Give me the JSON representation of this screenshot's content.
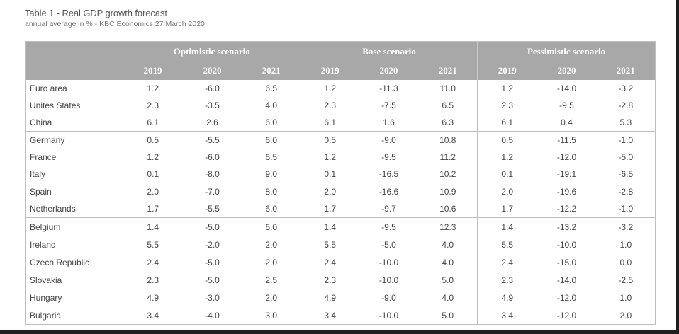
{
  "title": "Table 1 - Real GDP growth forecast",
  "subtitle": "annual average in % - KBC Economics 27 March 2020",
  "scenarios": [
    "Optimistic scenario",
    "Base scenario",
    "Pessimistic scenario"
  ],
  "years": [
    "2019",
    "2020",
    "2021"
  ],
  "rows": [
    {
      "name": "Euro area",
      "values": [
        "1.2",
        "-6.0",
        "6.5",
        "1.2",
        "-11.3",
        "11.0",
        "1.2",
        "-14.0",
        "-3.2"
      ]
    },
    {
      "name": "Unites States",
      "values": [
        "2.3",
        "-3.5",
        "4.0",
        "2.3",
        "-7.5",
        "6.5",
        "2.3",
        "-9.5",
        "-2.8"
      ]
    },
    {
      "name": "China",
      "values": [
        "6.1",
        "2.6",
        "6.0",
        "6.1",
        "1.6",
        "6.3",
        "6.1",
        "0.4",
        "5.3"
      ]
    },
    {
      "name": "Germany",
      "values": [
        "0.5",
        "-5.5",
        "6.0",
        "0.5",
        "-9.0",
        "10.8",
        "0.5",
        "-11.5",
        "-1.0"
      ]
    },
    {
      "name": "France",
      "values": [
        "1.2",
        "-6.0",
        "6.5",
        "1.2",
        "-9.5",
        "11.2",
        "1.2",
        "-12.0",
        "-5.0"
      ]
    },
    {
      "name": "Italy",
      "values": [
        "0.1",
        "-8.0",
        "9.0",
        "0.1",
        "-16.5",
        "10.2",
        "0.1",
        "-19.1",
        "-6.5"
      ]
    },
    {
      "name": "Spain",
      "values": [
        "2.0",
        "-7.0",
        "8.0",
        "2.0",
        "-16.6",
        "10.9",
        "2.0",
        "-19.6",
        "-2.8"
      ]
    },
    {
      "name": "Netherlands",
      "values": [
        "1.7",
        "-5.5",
        "6.0",
        "1.7",
        "-9.7",
        "10.6",
        "1.7",
        "-12.2",
        "-1.0"
      ]
    },
    {
      "name": "Belgium",
      "values": [
        "1.4",
        "-5.0",
        "6.0",
        "1.4",
        "-9.5",
        "12.3",
        "1.4",
        "-13.2",
        "-3.2"
      ]
    },
    {
      "name": "Ireland",
      "values": [
        "5.5",
        "-2.0",
        "2.0",
        "5.5",
        "-5.0",
        "4.0",
        "5.5",
        "-10.0",
        "1.0"
      ]
    },
    {
      "name": "Czech Republic",
      "values": [
        "2.4",
        "-5.0",
        "2.0",
        "2.4",
        "-10.0",
        "4.0",
        "2.4",
        "-15.0",
        "0.0"
      ]
    },
    {
      "name": "Slovakia",
      "values": [
        "2.3",
        "-5.0",
        "2.5",
        "2.3",
        "-10.0",
        "5.0",
        "2.3",
        "-14.0",
        "-2.5"
      ]
    },
    {
      "name": "Hungary",
      "values": [
        "4.9",
        "-3.0",
        "2.0",
        "4.9",
        "-9.0",
        "4.0",
        "4.9",
        "-12.0",
        "1.0"
      ]
    },
    {
      "name": "Bulgaria",
      "values": [
        "3.4",
        "-4.0",
        "3.0",
        "3.4",
        "-10.0",
        "5.0",
        "3.4",
        "-12.0",
        "2.0"
      ]
    }
  ],
  "colors": {
    "header_bg": "#a8a8a8",
    "header_text": "#ffffff",
    "text": "#444444"
  }
}
